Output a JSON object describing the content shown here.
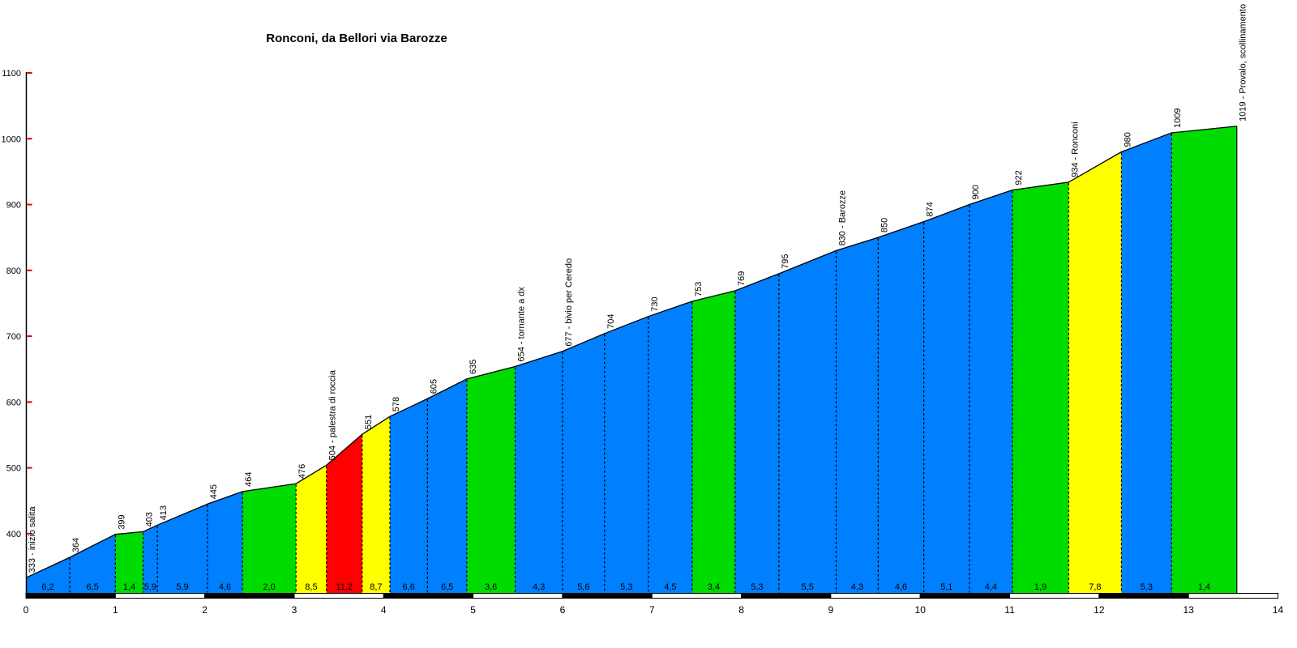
{
  "title": "Ronconi, da Bellori via Barozze",
  "chart_data": {
    "type": "area",
    "title": "Ronconi, da Bellori via Barozze",
    "x_axis": {
      "unit": "km",
      "min": 0,
      "max": 14,
      "tick_labels": [
        "0",
        "1",
        "2",
        "3",
        "4",
        "5",
        "6",
        "7",
        "8",
        "9",
        "10",
        "11",
        "12",
        "13",
        "14"
      ]
    },
    "y_axis": {
      "unit": "m",
      "ticks": [
        400,
        500,
        600,
        700,
        800,
        900,
        1000,
        1100
      ],
      "tick_color": "#e00000"
    },
    "colors": {
      "blue": "#0080ff",
      "green": "#00dc00",
      "yellow": "#ffff00",
      "red": "#ff0000",
      "text": "#000000",
      "background": "#ffffff",
      "ruler_black": "#000000",
      "ruler_white": "#ffffff"
    },
    "points": [
      {
        "km": 0.0,
        "elev": 333,
        "label": "333 - inizio salita"
      },
      {
        "km": 0.49,
        "elev": 364,
        "label": "364"
      },
      {
        "km": 1.0,
        "elev": 399,
        "label": "399"
      },
      {
        "km": 1.31,
        "elev": 403,
        "label": "403"
      },
      {
        "km": 1.47,
        "elev": 413,
        "label": "413"
      },
      {
        "km": 2.03,
        "elev": 445,
        "label": "445"
      },
      {
        "km": 2.42,
        "elev": 464,
        "label": "464"
      },
      {
        "km": 3.02,
        "elev": 476,
        "label": "476"
      },
      {
        "km": 3.36,
        "elev": 504,
        "label": "504 - palestra di roccia"
      },
      {
        "km": 3.76,
        "elev": 551,
        "label": "551"
      },
      {
        "km": 4.07,
        "elev": 578,
        "label": "578"
      },
      {
        "km": 4.49,
        "elev": 605,
        "label": "605"
      },
      {
        "km": 4.93,
        "elev": 635,
        "label": "635"
      },
      {
        "km": 5.47,
        "elev": 654,
        "label": "654 - tornante a dx"
      },
      {
        "km": 6.0,
        "elev": 677,
        "label": "677 - bivio per Ceredo"
      },
      {
        "km": 6.47,
        "elev": 704,
        "label": "704"
      },
      {
        "km": 6.96,
        "elev": 730,
        "label": "730"
      },
      {
        "km": 7.45,
        "elev": 753,
        "label": "753"
      },
      {
        "km": 7.93,
        "elev": 769,
        "label": "769"
      },
      {
        "km": 8.42,
        "elev": 795,
        "label": "795"
      },
      {
        "km": 9.06,
        "elev": 830,
        "label": "830 - Barozze"
      },
      {
        "km": 9.53,
        "elev": 850,
        "label": "850"
      },
      {
        "km": 10.04,
        "elev": 874,
        "label": "874"
      },
      {
        "km": 10.55,
        "elev": 900,
        "label": "900"
      },
      {
        "km": 11.03,
        "elev": 922,
        "label": "922"
      },
      {
        "km": 11.66,
        "elev": 934,
        "label": "934 - Ronconi"
      },
      {
        "km": 12.25,
        "elev": 980,
        "label": "980"
      },
      {
        "km": 12.81,
        "elev": 1009,
        "label": "1009"
      },
      {
        "km": 13.54,
        "elev": 1019,
        "label": "1019 - Provalo, scollinamento"
      }
    ],
    "segments": [
      {
        "from_km": 0.0,
        "to_km": 0.49,
        "gradient": "6,2",
        "category": "blue"
      },
      {
        "from_km": 0.49,
        "to_km": 1.0,
        "gradient": "6,5",
        "category": "blue"
      },
      {
        "from_km": 1.0,
        "to_km": 1.31,
        "gradient": "1,4",
        "category": "green"
      },
      {
        "from_km": 1.31,
        "to_km": 1.47,
        "gradient": "5,9",
        "category": "blue"
      },
      {
        "from_km": 1.47,
        "to_km": 2.03,
        "gradient": "5,9",
        "category": "blue"
      },
      {
        "from_km": 2.03,
        "to_km": 2.42,
        "gradient": "4,6",
        "category": "blue"
      },
      {
        "from_km": 2.42,
        "to_km": 3.02,
        "gradient": "2,0",
        "category": "green"
      },
      {
        "from_km": 3.02,
        "to_km": 3.36,
        "gradient": "8,5",
        "category": "yellow"
      },
      {
        "from_km": 3.36,
        "to_km": 3.76,
        "gradient": "11,2",
        "category": "red"
      },
      {
        "from_km": 3.76,
        "to_km": 4.07,
        "gradient": "8,7",
        "category": "yellow"
      },
      {
        "from_km": 4.07,
        "to_km": 4.49,
        "gradient": "6,6",
        "category": "blue"
      },
      {
        "from_km": 4.49,
        "to_km": 4.93,
        "gradient": "6,5",
        "category": "blue"
      },
      {
        "from_km": 4.93,
        "to_km": 5.47,
        "gradient": "3,6",
        "category": "green"
      },
      {
        "from_km": 5.47,
        "to_km": 6.0,
        "gradient": "4,3",
        "category": "blue"
      },
      {
        "from_km": 6.0,
        "to_km": 6.47,
        "gradient": "5,6",
        "category": "blue"
      },
      {
        "from_km": 6.47,
        "to_km": 6.96,
        "gradient": "5,3",
        "category": "blue"
      },
      {
        "from_km": 6.96,
        "to_km": 7.45,
        "gradient": "4,5",
        "category": "blue"
      },
      {
        "from_km": 7.45,
        "to_km": 7.93,
        "gradient": "3,4",
        "category": "green"
      },
      {
        "from_km": 7.93,
        "to_km": 8.42,
        "gradient": "5,3",
        "category": "blue"
      },
      {
        "from_km": 8.42,
        "to_km": 9.06,
        "gradient": "5,5",
        "category": "blue"
      },
      {
        "from_km": 9.06,
        "to_km": 9.53,
        "gradient": "4,3",
        "category": "blue"
      },
      {
        "from_km": 9.53,
        "to_km": 10.04,
        "gradient": "4,6",
        "category": "blue"
      },
      {
        "from_km": 10.04,
        "to_km": 10.55,
        "gradient": "5,1",
        "category": "blue"
      },
      {
        "from_km": 10.55,
        "to_km": 11.03,
        "gradient": "4,4",
        "category": "blue"
      },
      {
        "from_km": 11.03,
        "to_km": 11.66,
        "gradient": "1,9",
        "category": "green"
      },
      {
        "from_km": 11.66,
        "to_km": 12.25,
        "gradient": "7,8",
        "category": "yellow"
      },
      {
        "from_km": 12.25,
        "to_km": 12.81,
        "gradient": "5,3",
        "category": "blue"
      },
      {
        "from_km": 12.81,
        "to_km": 13.54,
        "gradient": "1,4",
        "category": "green"
      }
    ],
    "km_ruler": {
      "from_km": 0,
      "to_km": 14,
      "pattern": "alternating black/white per km, black first"
    }
  }
}
